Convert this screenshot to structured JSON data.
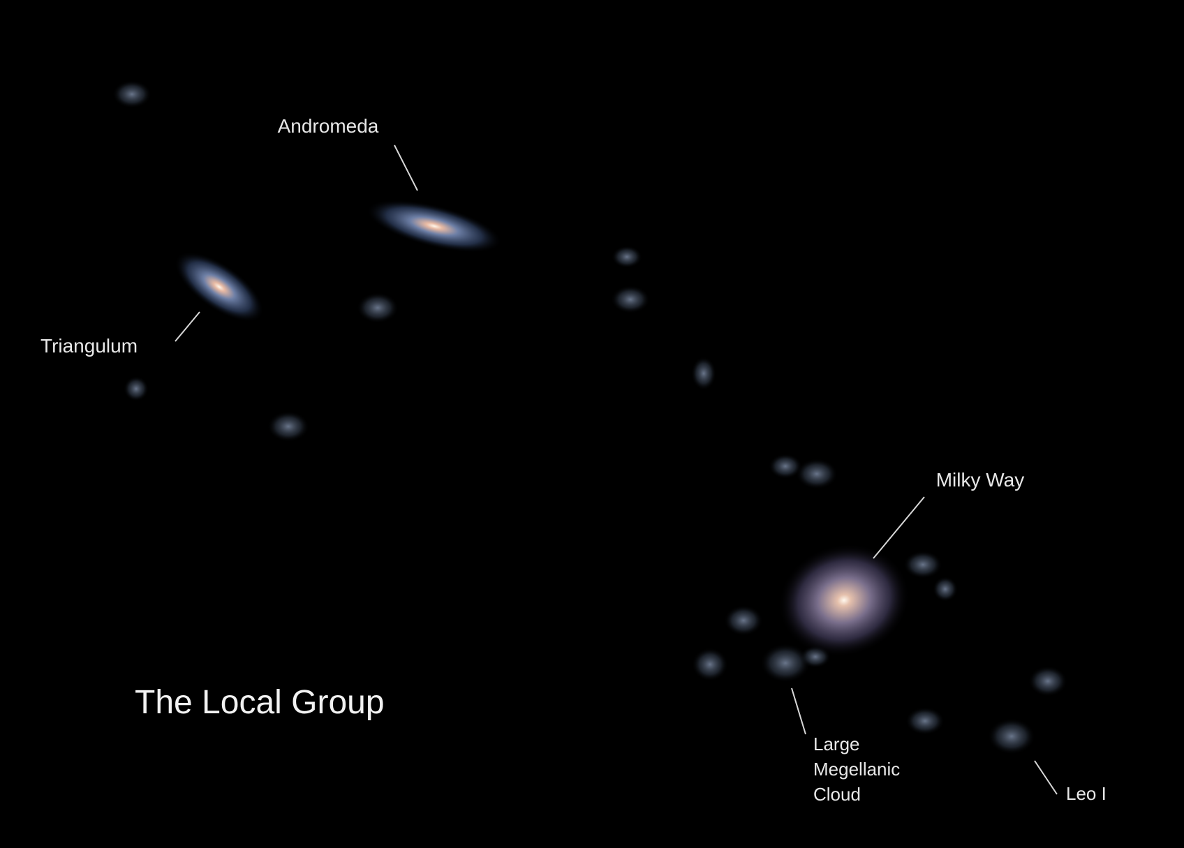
{
  "title": "The Local Group",
  "labels": [
    {
      "lines": [
        "Andromeda"
      ]
    },
    {
      "lines": [
        "Triangulum"
      ]
    },
    {
      "lines": [
        "Milky Way"
      ]
    },
    {
      "lines": [
        "Large",
        "Megellanic",
        "Cloud"
      ]
    },
    {
      "lines": [
        "Leo I"
      ]
    }
  ]
}
